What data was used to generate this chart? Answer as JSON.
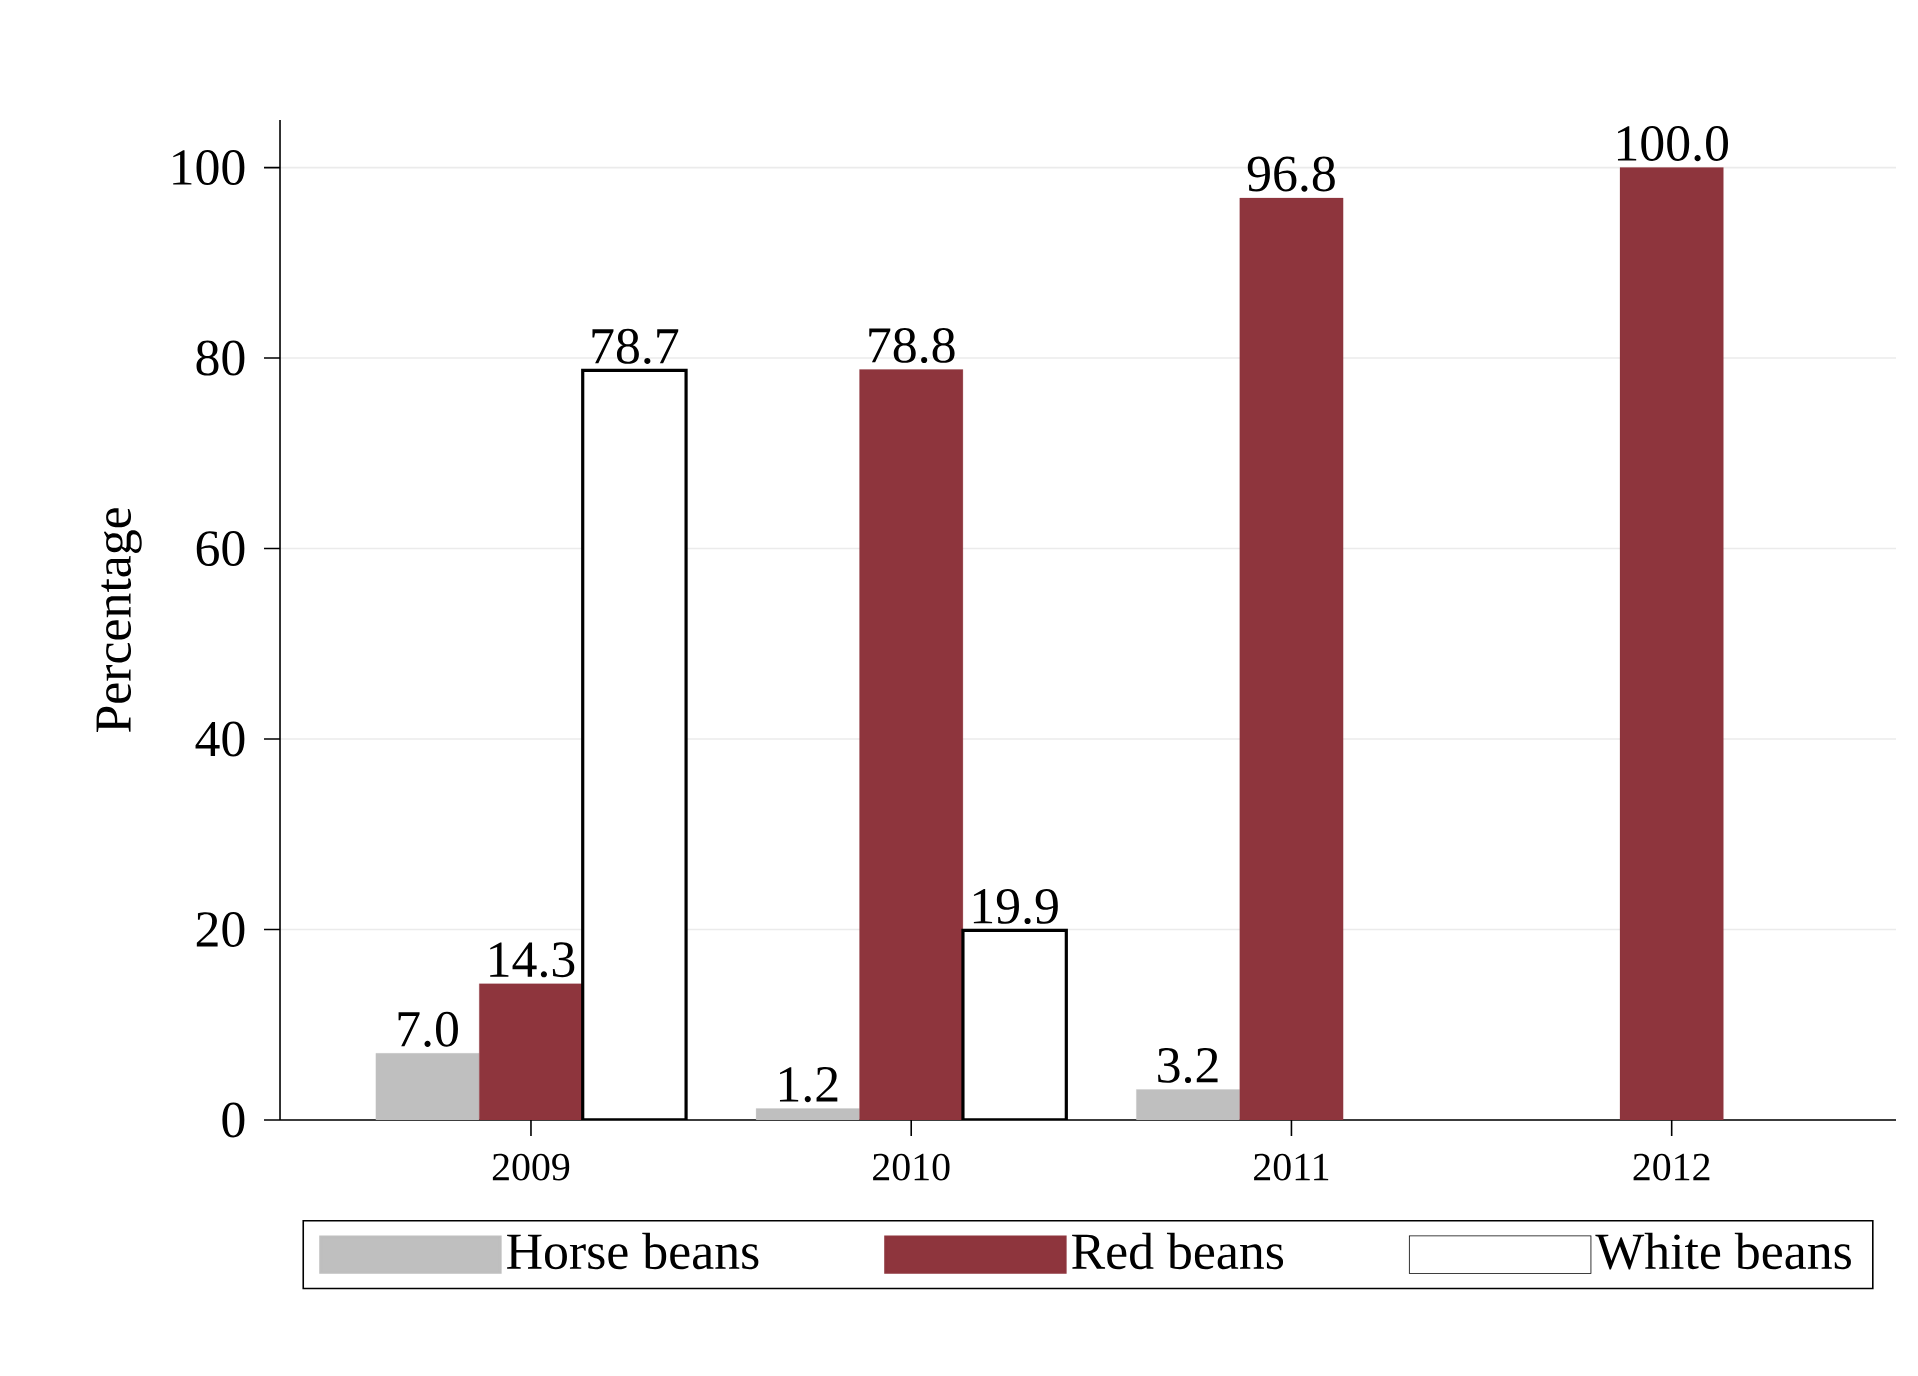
{
  "chart_data": {
    "type": "bar",
    "ylabel": "Percentage",
    "categories": [
      "2009",
      "2010",
      "2011",
      "2012"
    ],
    "series": [
      {
        "name": "Horse beans",
        "color": "#bfbfbf",
        "values": [
          7.0,
          1.2,
          3.2,
          null
        ],
        "value_labels": [
          "7.0",
          "1.2",
          "3.2",
          null
        ]
      },
      {
        "name": "Red beans",
        "color": "#8e353d",
        "values": [
          14.3,
          78.8,
          96.8,
          100.0
        ],
        "value_labels": [
          "14.3",
          "78.8",
          "96.8",
          "100.0"
        ]
      },
      {
        "name": "White beans",
        "color": "#ffffff",
        "values": [
          78.7,
          19.9,
          null,
          null
        ],
        "value_labels": [
          "78.7",
          "19.9",
          null,
          null
        ]
      }
    ],
    "ylim": [
      0,
      105
    ],
    "yticks": [
      0,
      20,
      40,
      60,
      80,
      100
    ],
    "grid": "y",
    "legend": "bottom"
  }
}
